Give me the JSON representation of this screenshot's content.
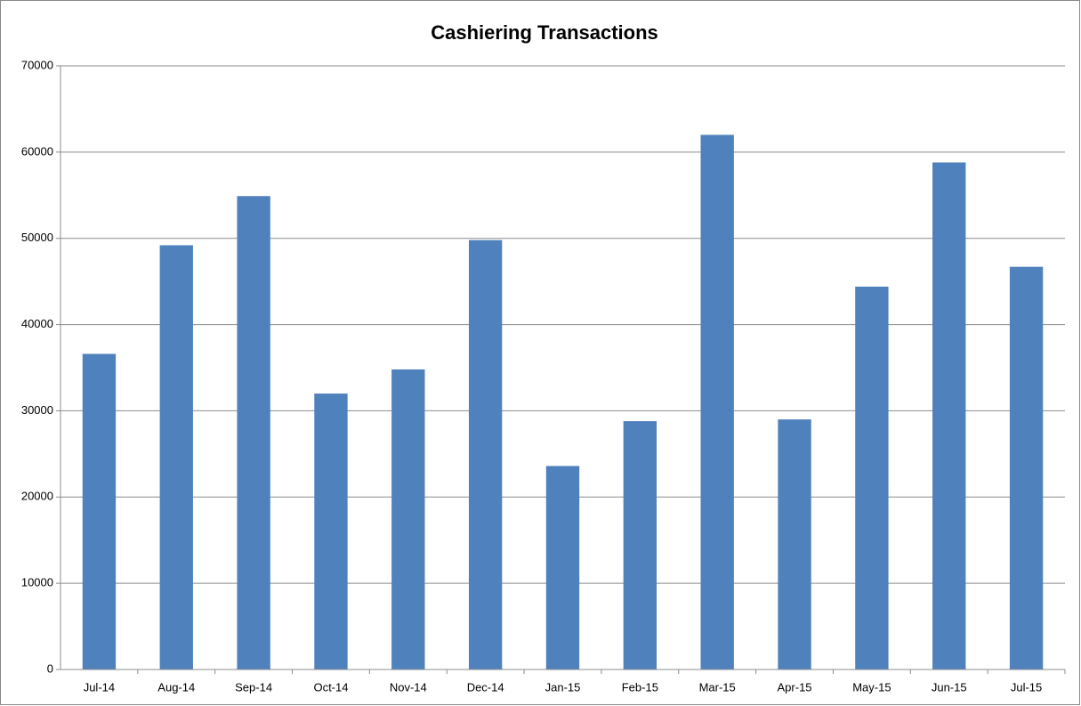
{
  "chart_data": {
    "type": "bar",
    "title": "Cashiering Transactions",
    "categories": [
      "Jul-14",
      "Aug-14",
      "Sep-14",
      "Oct-14",
      "Nov-14",
      "Dec-14",
      "Jan-15",
      "Feb-15",
      "Mar-15",
      "Apr-15",
      "May-15",
      "Jun-15",
      "Jul-15"
    ],
    "values": [
      36600,
      49200,
      54900,
      32000,
      34800,
      49800,
      23600,
      28800,
      62000,
      29000,
      44400,
      58800,
      46700
    ],
    "color": "#4f81bd",
    "ylim": [
      0,
      70000
    ],
    "yticks": [
      0,
      10000,
      20000,
      30000,
      40000,
      50000,
      60000,
      70000
    ],
    "grid": true
  }
}
